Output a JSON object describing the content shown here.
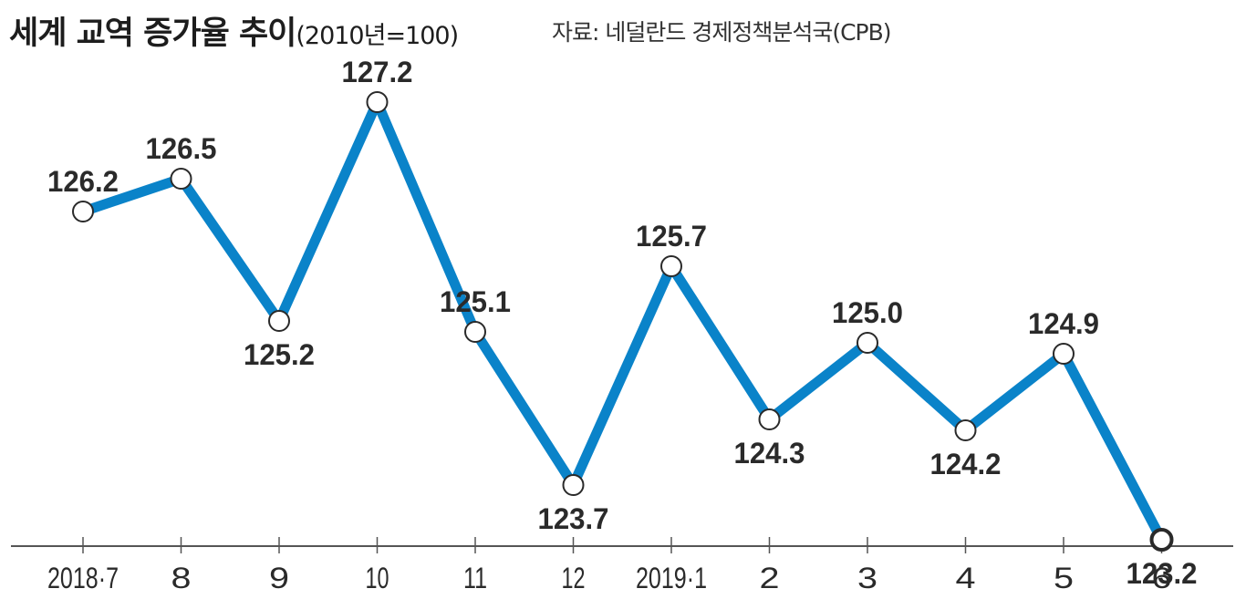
{
  "header": {
    "title": "세계 교역 증가율 추이",
    "title_unit": "(2010년=100)",
    "source": "자료: 네덜란드 경제정책분석국(CPB)"
  },
  "chart_data": {
    "type": "line",
    "title": "세계 교역 증가율 추이",
    "subtitle": "(2010년=100)",
    "xlabel": "",
    "ylabel": "",
    "categories": [
      "2018·7",
      "8",
      "9",
      "10",
      "11",
      "12",
      "2019·1",
      "2",
      "3",
      "4",
      "5",
      "6"
    ],
    "values": [
      126.2,
      126.5,
      125.2,
      127.2,
      125.1,
      123.7,
      125.7,
      124.3,
      125.0,
      124.2,
      124.9,
      123.2
    ],
    "data_labels": [
      "126.2",
      "126.5",
      "125.2",
      "127.2",
      "125.1",
      "123.7",
      "125.7",
      "124.3",
      "125.0",
      "124.2",
      "124.9",
      "123.2"
    ],
    "label_position": [
      "above",
      "above",
      "below",
      "above",
      "above",
      "below",
      "above",
      "below",
      "above",
      "below",
      "above",
      "below"
    ],
    "ylim": [
      122.3,
      127.8
    ],
    "grid": false,
    "legend": "none",
    "colors": {
      "line": "#0a83c9",
      "marker_fill": "#ffffff",
      "marker_stroke": "#2a2a2a",
      "axis": "#555555"
    }
  }
}
